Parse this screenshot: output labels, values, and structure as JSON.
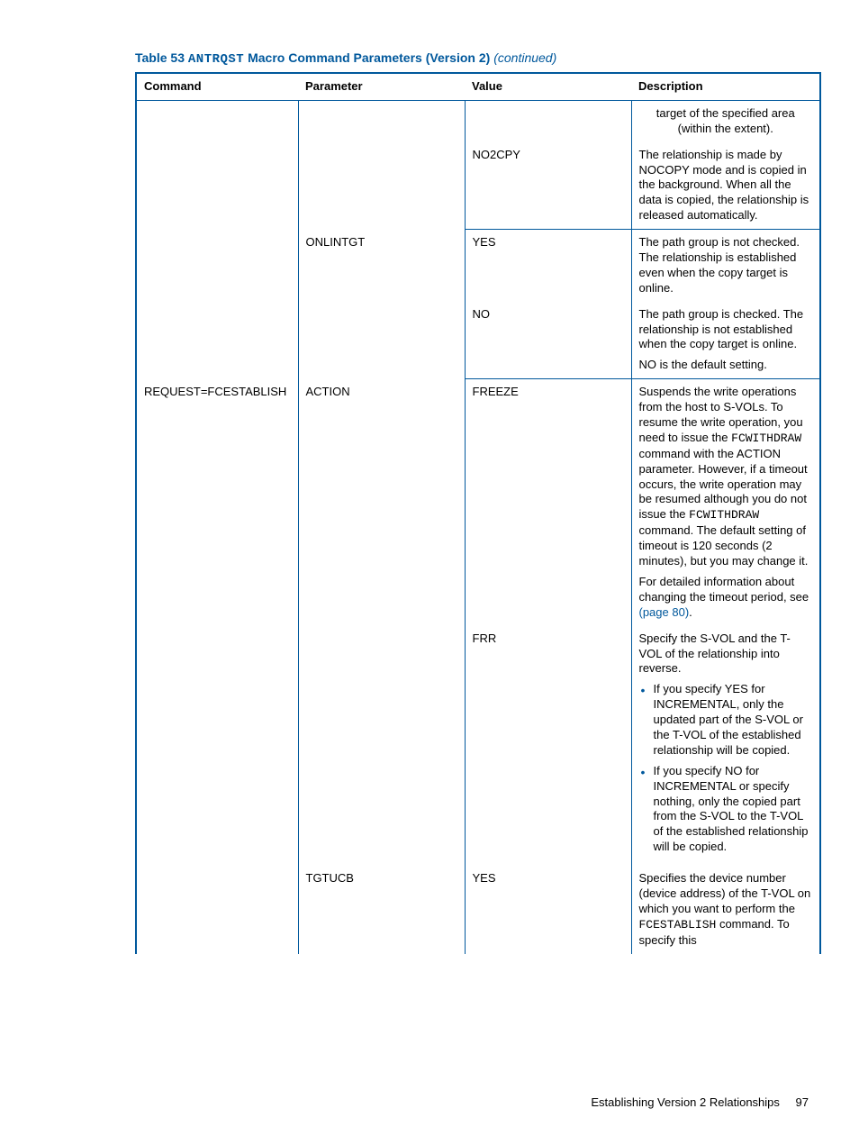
{
  "caption": {
    "label": "Table 53",
    "code": "ANTRQST",
    "rest": "Macro Command Parameters (Version 2)",
    "suffix": "(continued)"
  },
  "headers": {
    "c1": "Command",
    "c2": "Parameter",
    "c3": "Value",
    "c4": "Description"
  },
  "rows": {
    "r1": {
      "desc": "target of the specified area (within the extent)."
    },
    "r2": {
      "value": "NO2CPY",
      "desc": "The relationship is made by NOCOPY mode and is copied in the background. When all the data is copied, the relationship is released automatically."
    },
    "r3": {
      "param": "ONLINTGT",
      "value": "YES",
      "desc": "The path group is not checked. The relationship is established even when the copy target is online."
    },
    "r4": {
      "value": "NO",
      "desc_p1": "The path group is checked. The relationship is not established when the copy target is online.",
      "desc_p2": "NO is the default setting."
    },
    "r5": {
      "command": "REQUEST=FCESTABLISH",
      "param": "ACTION",
      "value": "FREEZE",
      "desc_pre": "Suspends the write operations from the host to S-VOLs. To resume the write operation, you need to issue the ",
      "code1": "FCWITHDRAW",
      "desc_mid1": " command with the ACTION parameter. However, if a timeout occurs, the write operation may be resumed although you do not issue the ",
      "code2": "FCWITHDRAW",
      "desc_mid2": " command. The default setting of timeout is 120 seconds (2 minutes), but you may change it.",
      "desc_p2_pre": "For detailed information about changing the timeout period, see ",
      "link": "(page 80)",
      "desc_p2_post": "."
    },
    "r6": {
      "value": "FRR",
      "desc_p1": "Specify the S-VOL and the T-VOL of the relationship into reverse.",
      "li1": "If you specify YES for INCREMENTAL, only the updated part of the S-VOL or the T-VOL of the established relationship will be copied.",
      "li2": "If you specify NO for INCREMENTAL or specify nothing, only the copied part from the S-VOL to the T-VOL of the established relationship will be copied."
    },
    "r7": {
      "param": "TGTUCB",
      "value": "YES",
      "desc_pre": "Specifies the device number (device address) of the T-VOL on which you want to perform the ",
      "code": "FCESTABLISH",
      "desc_post": " command. To specify this"
    }
  },
  "footer": {
    "text": "Establishing Version 2 Relationships",
    "page": "97"
  }
}
